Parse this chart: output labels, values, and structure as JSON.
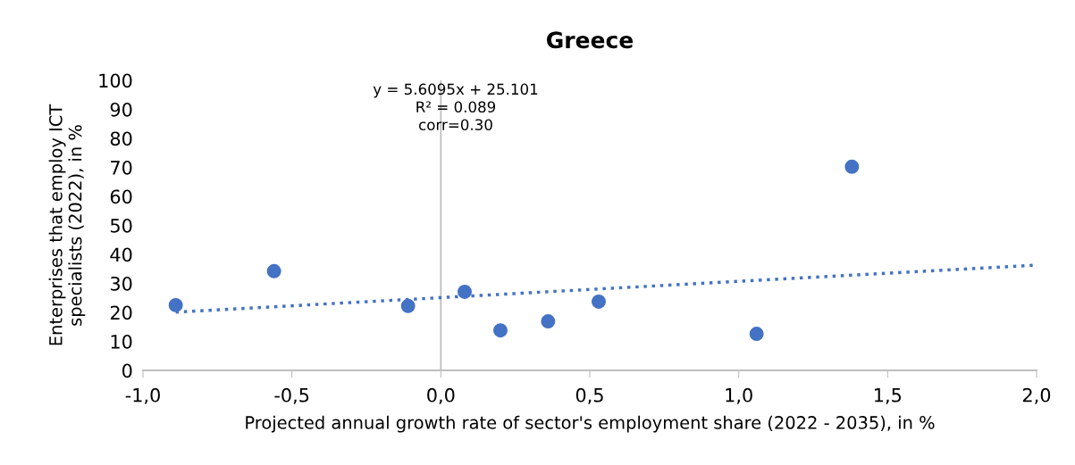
{
  "chart_data": {
    "type": "scatter",
    "title": "Greece",
    "xlabel": "Projected annual growth rate of sector's employment share (2022 - 2035), in %",
    "ylabel": "Enterprises that employ ICT\nspecialists (2022), in %",
    "annotations": [
      "y = 5.6095x + 25.101\nR² = 0.089\ncorr=0.30"
    ],
    "series": [
      {
        "color": "#4472c4",
        "marker": "circle",
        "x": [
          -0.89,
          -0.56,
          -0.11,
          0.08,
          0.2,
          0.36,
          0.53,
          1.06,
          1.38
        ],
        "values": [
          22.5,
          34.2,
          22.2,
          27.1,
          13.8,
          16.9,
          23.7,
          12.6,
          70.2
        ]
      },
      {
        "type": "line",
        "color": "#4472c4",
        "marker": "none",
        "line_style": "dotted",
        "x": [
          -0.89,
          2.0
        ],
        "values": [
          20.1,
          36.3
        ]
      }
    ],
    "ref_lines": [
      {
        "axis": "x",
        "value": 0,
        "color": "#bfbfbf"
      }
    ],
    "xlim": [
      -1.0,
      2.0
    ],
    "xticks": [
      {
        "value": -1.0,
        "label": "-1,0"
      },
      {
        "value": -0.5,
        "label": "-0,5"
      },
      {
        "value": 0.0,
        "label": "0,0"
      },
      {
        "value": 0.5,
        "label": "0,5"
      },
      {
        "value": 1.0,
        "label": "1,0"
      },
      {
        "value": 1.5,
        "label": "1,5"
      },
      {
        "value": 2.0,
        "label": "2,0"
      }
    ],
    "ylim": [
      0,
      100
    ],
    "yticks": [
      0,
      10,
      20,
      30,
      40,
      50,
      60,
      70,
      80,
      90,
      100
    ],
    "grid": false,
    "legend": false
  }
}
